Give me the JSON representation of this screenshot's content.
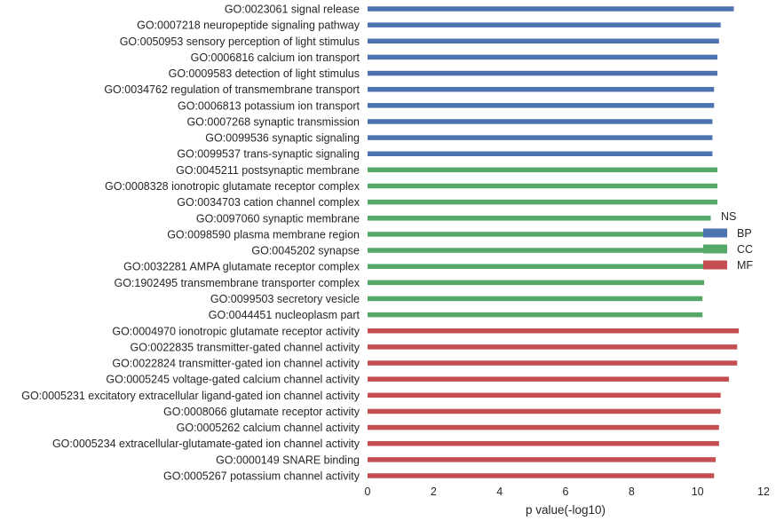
{
  "chart_data": {
    "type": "bar",
    "orientation": "horizontal",
    "title": "",
    "xlabel": "p value(-log10)",
    "ylabel": "",
    "xlim": [
      0,
      12
    ],
    "xticks": [
      0,
      2,
      4,
      6,
      8,
      10,
      12
    ],
    "grid": false,
    "legend": {
      "title": "NS",
      "placement": "right",
      "entries": [
        {
          "name": "BP",
          "color": "#4c72b0"
        },
        {
          "name": "CC",
          "color": "#55a868"
        },
        {
          "name": "MF",
          "color": "#c44e52"
        }
      ]
    },
    "bars": [
      {
        "label": "GO:0023061 signal release",
        "value": 11.1,
        "group": "BP"
      },
      {
        "label": "GO:0007218 neuropeptide signaling pathway",
        "value": 10.7,
        "group": "BP"
      },
      {
        "label": "GO:0050953 sensory perception of light stimulus",
        "value": 10.65,
        "group": "BP"
      },
      {
        "label": "GO:0006816 calcium ion transport",
        "value": 10.6,
        "group": "BP"
      },
      {
        "label": "GO:0009583 detection of light stimulus",
        "value": 10.6,
        "group": "BP"
      },
      {
        "label": "GO:0034762 regulation of transmembrane transport",
        "value": 10.5,
        "group": "BP"
      },
      {
        "label": "GO:0006813 potassium ion transport",
        "value": 10.5,
        "group": "BP"
      },
      {
        "label": "GO:0007268 synaptic transmission",
        "value": 10.45,
        "group": "BP"
      },
      {
        "label": "GO:0099536 synaptic signaling",
        "value": 10.45,
        "group": "BP"
      },
      {
        "label": "GO:0099537 trans-synaptic signaling",
        "value": 10.45,
        "group": "BP"
      },
      {
        "label": "GO:0045211 postsynaptic membrane",
        "value": 10.6,
        "group": "CC"
      },
      {
        "label": "GO:0008328 ionotropic glutamate receptor complex",
        "value": 10.6,
        "group": "CC"
      },
      {
        "label": "GO:0034703 cation channel complex",
        "value": 10.6,
        "group": "CC"
      },
      {
        "label": "GO:0097060 synaptic membrane",
        "value": 10.4,
        "group": "CC"
      },
      {
        "label": "GO:0098590 plasma membrane region",
        "value": 10.2,
        "group": "CC"
      },
      {
        "label": "GO:0045202 synapse",
        "value": 10.2,
        "group": "CC"
      },
      {
        "label": "GO:0032281 AMPA glutamate receptor complex",
        "value": 10.2,
        "group": "CC"
      },
      {
        "label": "GO:1902495 transmembrane transporter complex",
        "value": 10.2,
        "group": "CC"
      },
      {
        "label": "GO:0099503 secretory vesicle",
        "value": 10.15,
        "group": "CC"
      },
      {
        "label": "GO:0044451 nucleoplasm part",
        "value": 10.15,
        "group": "CC"
      },
      {
        "label": "GO:0004970 ionotropic glutamate receptor activity",
        "value": 11.25,
        "group": "MF"
      },
      {
        "label": "GO:0022835 transmitter-gated channel activity",
        "value": 11.2,
        "group": "MF"
      },
      {
        "label": "GO:0022824 transmitter-gated ion channel activity",
        "value": 11.2,
        "group": "MF"
      },
      {
        "label": "GO:0005245 voltage-gated calcium channel activity",
        "value": 10.95,
        "group": "MF"
      },
      {
        "label": "GO:0005231 excitatory extracellular ligand-gated ion channel activity",
        "value": 10.7,
        "group": "MF"
      },
      {
        "label": "GO:0008066 glutamate receptor activity",
        "value": 10.7,
        "group": "MF"
      },
      {
        "label": "GO:0005262 calcium channel activity",
        "value": 10.65,
        "group": "MF"
      },
      {
        "label": "GO:0005234 extracellular-glutamate-gated ion channel activity",
        "value": 10.65,
        "group": "MF"
      },
      {
        "label": "GO:0000149 SNARE binding",
        "value": 10.55,
        "group": "MF"
      },
      {
        "label": "GO:0005267 potassium channel activity",
        "value": 10.5,
        "group": "MF"
      }
    ]
  }
}
